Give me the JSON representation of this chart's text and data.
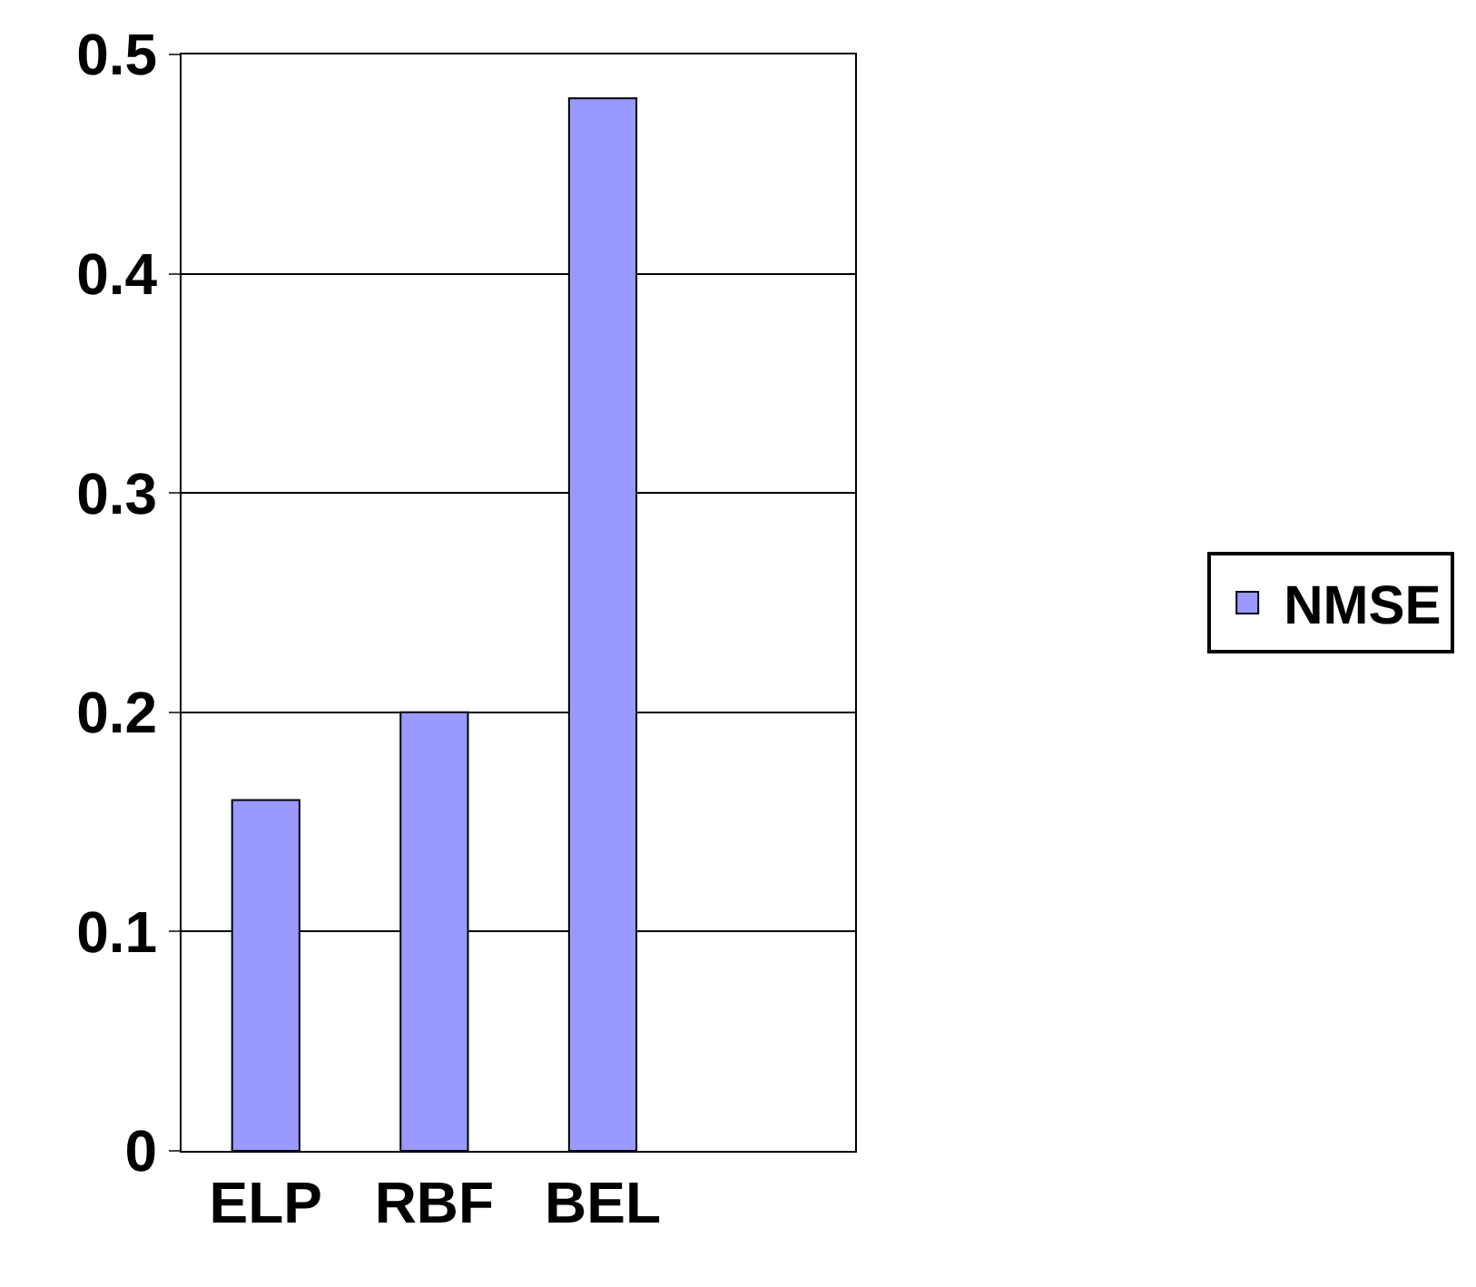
{
  "chart_data": {
    "type": "bar",
    "categories": [
      "ELP",
      "RBF",
      "BEL",
      null
    ],
    "series": [
      {
        "name": "NMSE",
        "color": "#9999ff",
        "values": [
          0.16,
          0.2,
          0.48,
          null
        ]
      }
    ],
    "ylim": [
      0,
      0.5
    ],
    "yticks": [
      0,
      0.1,
      0.2,
      0.3,
      0.4,
      0.5
    ],
    "grid": "y",
    "legend": "right"
  }
}
